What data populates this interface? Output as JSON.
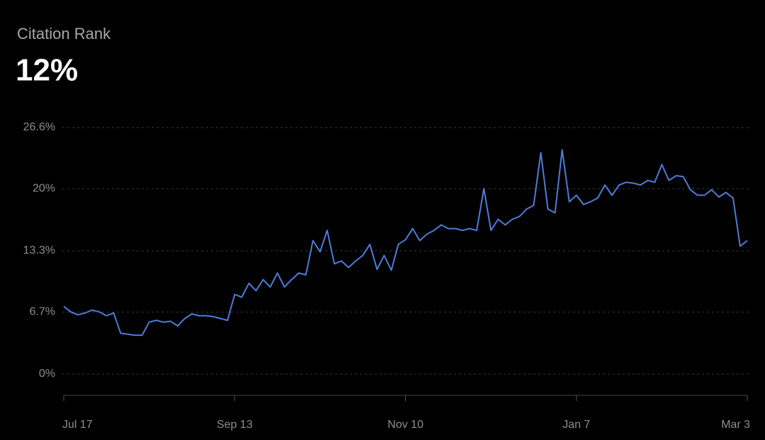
{
  "chart_data": {
    "type": "line",
    "title": "Citation Rank",
    "subtitle": "12%",
    "categories": [
      "Jul 17",
      null,
      null,
      null,
      null,
      null,
      null,
      null,
      null,
      null,
      null,
      null,
      null,
      null,
      null,
      null,
      null,
      null,
      null,
      null,
      null,
      null,
      null,
      null,
      "Sep 13",
      null,
      null,
      null,
      null,
      null,
      null,
      null,
      null,
      null,
      null,
      null,
      null,
      null,
      null,
      null,
      null,
      null,
      null,
      null,
      null,
      null,
      null,
      null,
      "Nov 10",
      null,
      null,
      null,
      null,
      null,
      null,
      null,
      null,
      null,
      null,
      null,
      null,
      null,
      null,
      null,
      null,
      null,
      null,
      null,
      null,
      null,
      null,
      null,
      "Jan 7",
      null,
      null,
      null,
      null,
      null,
      null,
      null,
      null,
      null,
      null,
      null,
      null,
      null,
      null,
      null,
      null,
      null,
      null,
      null,
      null,
      null,
      null,
      null,
      "Mar 3"
    ],
    "values": [
      7.3,
      6.7,
      6.4,
      6.6,
      6.9,
      6.7,
      6.3,
      6.6,
      4.4,
      4.3,
      4.2,
      4.2,
      5.6,
      5.8,
      5.6,
      5.7,
      5.2,
      6.0,
      6.5,
      6.3,
      6.3,
      6.2,
      6.0,
      5.8,
      8.6,
      8.3,
      9.8,
      9.0,
      10.2,
      9.4,
      10.9,
      9.4,
      10.2,
      10.9,
      10.7,
      14.4,
      13.2,
      15.5,
      11.9,
      12.2,
      11.5,
      12.2,
      12.8,
      14.0,
      11.3,
      12.8,
      11.2,
      14.0,
      14.5,
      15.7,
      14.4,
      15.1,
      15.5,
      16.1,
      15.7,
      15.7,
      15.5,
      15.7,
      15.5,
      20.0,
      15.5,
      16.7,
      16.1,
      16.7,
      17.0,
      17.8,
      18.2,
      23.9,
      17.8,
      17.4,
      24.2,
      18.6,
      19.3,
      18.3,
      18.6,
      19.0,
      20.4,
      19.3,
      20.4,
      20.7,
      20.6,
      20.4,
      20.9,
      20.7,
      22.6,
      20.9,
      21.4,
      21.3,
      19.9,
      19.3,
      19.3,
      19.9,
      19.1,
      19.6,
      19.0,
      13.8,
      14.4
    ],
    "color": "#4f7bd8",
    "ylim": [
      0,
      26.6
    ],
    "yticks": [
      {
        "value": 0,
        "label": "0%"
      },
      {
        "value": 6.7,
        "label": "6.7%"
      },
      {
        "value": 13.3,
        "label": "13.3%"
      },
      {
        "value": 20,
        "label": "20%"
      },
      {
        "value": 26.6,
        "label": "26.6%"
      }
    ],
    "grid": true
  }
}
